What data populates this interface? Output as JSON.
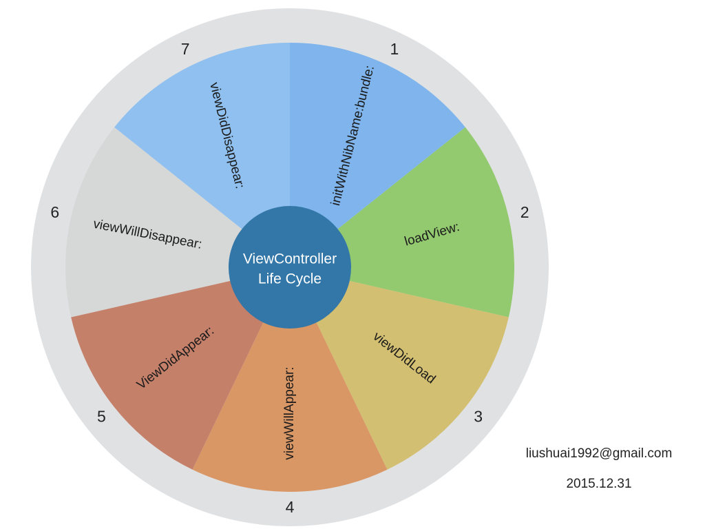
{
  "center": {
    "line1": "ViewController",
    "line2": "Life Cycle",
    "color": "#3277a8"
  },
  "outer_ring_color": "#e0e1e3",
  "segments": [
    {
      "number": "1",
      "label": "initWithNibName:bundle:",
      "color": "#7fb5ec"
    },
    {
      "number": "2",
      "label": "loadView:",
      "color": "#93c96f"
    },
    {
      "number": "3",
      "label": "viewDidLoad",
      "color": "#d3bf71"
    },
    {
      "number": "4",
      "label": "viewWillAppear:",
      "color": "#da9766"
    },
    {
      "number": "5",
      "label": "ViewDidAppear:",
      "color": "#c5806a"
    },
    {
      "number": "6",
      "label": "viewWillDisappear:",
      "color": "#d6d7d7"
    },
    {
      "number": "7",
      "label": "viewDidDisappear:",
      "color": "#8fc0ef"
    }
  ],
  "author_email": "liushuai1992@gmail.com",
  "date": "2015.12.31"
}
